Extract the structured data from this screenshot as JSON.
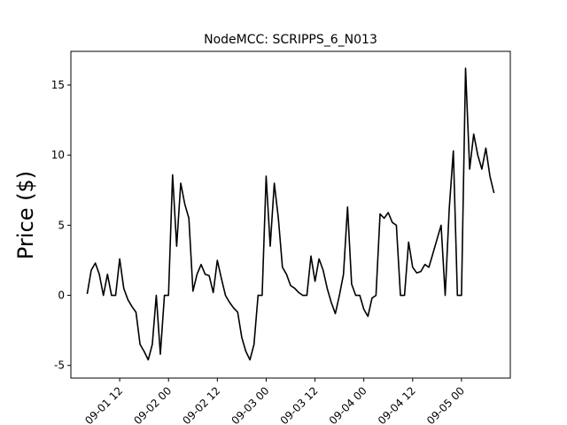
{
  "chart_data": {
    "type": "line",
    "title": "NodeMCC: SCRIPPS_6_N013",
    "xlabel": "",
    "ylabel": "Price ($)",
    "xlim": [
      "2022-09-01 00:00",
      "2022-09-05 12:00"
    ],
    "ylim": [
      -5.9,
      17.4
    ],
    "yticks": [
      -5,
      0,
      5,
      10,
      15
    ],
    "xticks": [
      {
        "x": "2022-09-01 12:00",
        "label": "09-01 12"
      },
      {
        "x": "2022-09-02 00:00",
        "label": "09-02 00"
      },
      {
        "x": "2022-09-02 12:00",
        "label": "09-02 12"
      },
      {
        "x": "2022-09-03 00:00",
        "label": "09-03 00"
      },
      {
        "x": "2022-09-03 12:00",
        "label": "09-03 12"
      },
      {
        "x": "2022-09-04 00:00",
        "label": "09-04 00"
      },
      {
        "x": "2022-09-04 12:00",
        "label": "09-04 12"
      },
      {
        "x": "2022-09-05 00:00",
        "label": "09-05 00"
      }
    ],
    "grid": false,
    "color": "#000000",
    "series": [
      {
        "x": [
          "2022-09-01 04:00",
          "2022-09-01 05:00",
          "2022-09-01 06:00",
          "2022-09-01 07:00",
          "2022-09-01 08:00",
          "2022-09-01 09:00",
          "2022-09-01 10:00",
          "2022-09-01 11:00",
          "2022-09-01 12:00",
          "2022-09-01 13:00",
          "2022-09-01 14:00",
          "2022-09-01 15:00",
          "2022-09-01 16:00",
          "2022-09-01 17:00",
          "2022-09-01 18:00",
          "2022-09-01 19:00",
          "2022-09-01 20:00",
          "2022-09-01 21:00",
          "2022-09-01 22:00",
          "2022-09-01 23:00",
          "2022-09-02 00:00",
          "2022-09-02 01:00",
          "2022-09-02 02:00",
          "2022-09-02 03:00",
          "2022-09-02 04:00",
          "2022-09-02 05:00",
          "2022-09-02 06:00",
          "2022-09-02 07:00",
          "2022-09-02 08:00",
          "2022-09-02 09:00",
          "2022-09-02 10:00",
          "2022-09-02 11:00",
          "2022-09-02 12:00",
          "2022-09-02 13:00",
          "2022-09-02 14:00",
          "2022-09-02 15:00",
          "2022-09-02 16:00",
          "2022-09-02 17:00",
          "2022-09-02 18:00",
          "2022-09-02 19:00",
          "2022-09-02 20:00",
          "2022-09-02 21:00",
          "2022-09-02 22:00",
          "2022-09-02 23:00",
          "2022-09-03 00:00",
          "2022-09-03 01:00",
          "2022-09-03 02:00",
          "2022-09-03 03:00",
          "2022-09-03 04:00",
          "2022-09-03 05:00",
          "2022-09-03 06:00",
          "2022-09-03 07:00",
          "2022-09-03 08:00",
          "2022-09-03 09:00",
          "2022-09-03 10:00",
          "2022-09-03 11:00",
          "2022-09-03 12:00",
          "2022-09-03 13:00",
          "2022-09-03 14:00",
          "2022-09-03 15:00",
          "2022-09-03 16:00",
          "2022-09-03 17:00",
          "2022-09-03 18:00",
          "2022-09-03 19:00",
          "2022-09-03 20:00",
          "2022-09-03 21:00",
          "2022-09-03 22:00",
          "2022-09-03 23:00",
          "2022-09-04 00:00",
          "2022-09-04 01:00",
          "2022-09-04 02:00",
          "2022-09-04 03:00",
          "2022-09-04 04:00",
          "2022-09-04 05:00",
          "2022-09-04 06:00",
          "2022-09-04 07:00",
          "2022-09-04 08:00",
          "2022-09-04 09:00",
          "2022-09-04 10:00",
          "2022-09-04 11:00",
          "2022-09-04 12:00",
          "2022-09-04 13:00",
          "2022-09-04 14:00",
          "2022-09-04 15:00",
          "2022-09-04 16:00",
          "2022-09-04 17:00",
          "2022-09-04 18:00",
          "2022-09-04 19:00",
          "2022-09-04 20:00",
          "2022-09-04 21:00",
          "2022-09-04 22:00",
          "2022-09-04 23:00",
          "2022-09-05 00:00",
          "2022-09-05 01:00",
          "2022-09-05 02:00",
          "2022-09-05 03:00",
          "2022-09-05 04:00",
          "2022-09-05 05:00",
          "2022-09-05 06:00",
          "2022-09-05 07:00",
          "2022-09-05 08:00"
        ],
        "values": [
          0.1,
          1.8,
          2.3,
          1.5,
          0.0,
          1.5,
          0.0,
          0.0,
          2.6,
          0.5,
          -0.3,
          -0.8,
          -1.2,
          -3.5,
          -4.0,
          -4.6,
          -3.5,
          0.0,
          -4.2,
          0.0,
          0.0,
          8.6,
          3.5,
          8.0,
          6.5,
          5.5,
          0.3,
          1.5,
          2.2,
          1.5,
          1.4,
          0.2,
          2.5,
          1.2,
          0.0,
          -0.5,
          -0.9,
          -1.2,
          -3.0,
          -4.0,
          -4.6,
          -3.5,
          0.0,
          0.0,
          8.5,
          3.5,
          8.0,
          5.5,
          2.0,
          1.5,
          0.7,
          0.5,
          0.2,
          0.0,
          0.0,
          2.8,
          1.0,
          2.6,
          1.8,
          0.5,
          -0.5,
          -1.3,
          0.0,
          1.5,
          6.3,
          0.8,
          0.0,
          0.0,
          -1.0,
          -1.5,
          -0.2,
          0.0,
          5.8,
          5.5,
          5.9,
          5.2,
          5.0,
          0.0,
          0.0,
          3.8,
          2.0,
          1.6,
          1.7,
          2.2,
          2.0,
          3.0,
          4.0,
          5.0,
          0.0,
          6.2,
          10.3,
          0.0,
          0.0,
          16.2,
          9.0,
          11.5,
          10.0,
          9.0,
          10.5,
          8.5,
          7.3
        ]
      }
    ]
  }
}
